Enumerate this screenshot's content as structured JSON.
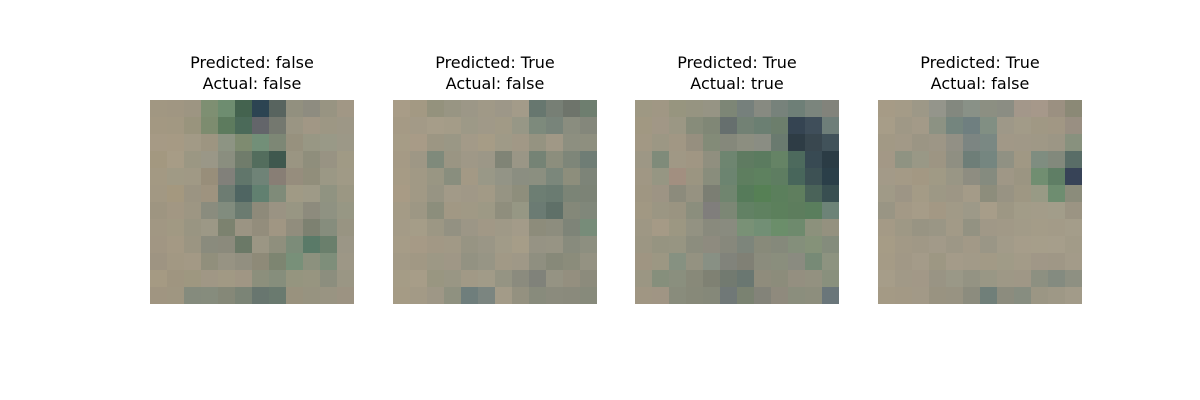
{
  "panels": [
    {
      "predicted": "Predicted: false",
      "actual": "Actual: false",
      "pixels": [
        [
          "#a19782",
          "#a09682",
          "#9d9582",
          "#7e8f72",
          "#6e8d70",
          "#44634f",
          "#2c4452",
          "#58645f",
          "#92907f",
          "#8e8c80",
          "#989482",
          "#a19785"
        ],
        [
          "#a39882",
          "#a29882",
          "#99947d",
          "#7d8c6f",
          "#5d7b5e",
          "#4b6a59",
          "#63656a",
          "#74786f",
          "#9a9583",
          "#a19785",
          "#9d9784",
          "#9d9786"
        ],
        [
          "#a69a85",
          "#a69a84",
          "#a29a86",
          "#9d9581",
          "#8d9483",
          "#7e8b70",
          "#728f78",
          "#7d8775",
          "#97917e",
          "#989784",
          "#999987",
          "#9c9887"
        ],
        [
          "#a39880",
          "#a79c86",
          "#9b9783",
          "#9a9787",
          "#8a8e7f",
          "#707c6b",
          "#536d5d",
          "#3f584e",
          "#9a9582",
          "#8f8e7c",
          "#989383",
          "#a09a85"
        ],
        [
          "#a39983",
          "#a09a85",
          "#a09985",
          "#988e7a",
          "#81807a",
          "#61766b",
          "#6f8377",
          "#887e75",
          "#968d7d",
          "#918e7b",
          "#9b9885",
          "#a09a86"
        ],
        [
          "#a29883",
          "#a4987f",
          "#9b9482",
          "#9e937f",
          "#6d7c72",
          "#4f6562",
          "#618070",
          "#7f8b79",
          "#a09a85",
          "#9e9a87",
          "#909381",
          "#9b9783"
        ],
        [
          "#9e9581",
          "#a29783",
          "#9d9683",
          "#8a8c7e",
          "#818c7e",
          "#6b7b70",
          "#8e8a7a",
          "#9a9383",
          "#989683",
          "#8d8b7d",
          "#8f9282",
          "#979784"
        ],
        [
          "#a19783",
          "#a19983",
          "#999582",
          "#9c9886",
          "#7c826f",
          "#9b9483",
          "#938d7c",
          "#a09683",
          "#918d7d",
          "#7d8171",
          "#868d7d",
          "#989482"
        ],
        [
          "#a19683",
          "#a49984",
          "#9b9582",
          "#8a8b7d",
          "#8b8a7c",
          "#6b7967",
          "#9b9684",
          "#8f8f7d",
          "#7c8c79",
          "#5a7a68",
          "#6a7f6c",
          "#9b9686"
        ],
        [
          "#9e9482",
          "#a29883",
          "#a39985",
          "#918f7c",
          "#979383",
          "#928f80",
          "#8e8a78",
          "#7d8571",
          "#789079",
          "#8c917e",
          "#7e8e7a",
          "#9d9786"
        ],
        [
          "#a59a83",
          "#9f9580",
          "#9e9780",
          "#a09785",
          "#a19984",
          "#a09684",
          "#8c8f7c",
          "#868e7c",
          "#95957f",
          "#979580",
          "#8c8e7e",
          "#9a9684"
        ],
        [
          "#a09581",
          "#9f9681",
          "#858b7d",
          "#868c7d",
          "#858878",
          "#7b8476",
          "#68766f",
          "#6a7a6f",
          "#99927e",
          "#979380",
          "#999482",
          "#9c9382"
        ]
      ]
    },
    {
      "predicted": "Predicted: True",
      "actual": "Actual: false",
      "pixels": [
        [
          "#a89c87",
          "#a39983",
          "#94927d",
          "#989583",
          "#9c9787",
          "#a09987",
          "#9d9788",
          "#a39b89",
          "#67776f",
          "#777f75",
          "#6e746b",
          "#6e7e6f"
        ],
        [
          "#a59a85",
          "#a39a87",
          "#a69d89",
          "#a49c88",
          "#9d9987",
          "#a09988",
          "#a19a86",
          "#979786",
          "#7d8a7c",
          "#78847a",
          "#8a8d7f",
          "#84877b"
        ],
        [
          "#a69c86",
          "#a89b87",
          "#9c9683",
          "#9a9785",
          "#a39a88",
          "#a69c86",
          "#9f9a87",
          "#a19886",
          "#959381",
          "#a09886",
          "#8d8f80",
          "#8e8f7f"
        ],
        [
          "#a59a85",
          "#9e9785",
          "#7f8a7b",
          "#9a9583",
          "#9f9887",
          "#9c9787",
          "#808476",
          "#9a9686",
          "#758375",
          "#8c8e7d",
          "#7e8679",
          "#6f7d75"
        ],
        [
          "#a69b85",
          "#a19985",
          "#999683",
          "#898e7e",
          "#a39985",
          "#999887",
          "#939486",
          "#8b8e81",
          "#8b8f80",
          "#7b877b",
          "#8d8e7c",
          "#7d8478"
        ],
        [
          "#a89b85",
          "#a19985",
          "#979483",
          "#a29a88",
          "#a09887",
          "#a29a86",
          "#969483",
          "#8e8e7c",
          "#6d7e73",
          "#6a7b71",
          "#7b8476",
          "#7c8376"
        ],
        [
          "#a49b86",
          "#9d9784",
          "#8c8e7c",
          "#a19884",
          "#a09985",
          "#9d9985",
          "#8f8e7d",
          "#969784",
          "#6b7b73",
          "#5f7068",
          "#848879",
          "#80877a"
        ],
        [
          "#a49b87",
          "#a59d88",
          "#9c9784",
          "#939182",
          "#9c9686",
          "#a19886",
          "#9f9987",
          "#a39b89",
          "#8d8c7b",
          "#8d8d7e",
          "#7e8478",
          "#778c79"
        ],
        [
          "#a69c87",
          "#a69a86",
          "#a29885",
          "#a19986",
          "#979483",
          "#9a9686",
          "#a19b88",
          "#a69d88",
          "#969384",
          "#979484",
          "#888b7d",
          "#8d8f80"
        ],
        [
          "#a39a86",
          "#a19884",
          "#9d9885",
          "#9f9786",
          "#939282",
          "#979585",
          "#a19986",
          "#9f9887",
          "#8f8f80",
          "#878979",
          "#8b8c7b",
          "#949282"
        ],
        [
          "#a59c86",
          "#a79d88",
          "#999681",
          "#999684",
          "#a19986",
          "#a19b88",
          "#959483",
          "#8b8b7e",
          "#80827a",
          "#959383",
          "#948f7f",
          "#8c8b7c"
        ],
        [
          "#a59b85",
          "#a39a86",
          "#9e9786",
          "#8f9180",
          "#6f7e7c",
          "#7b8580",
          "#a39b88",
          "#949180",
          "#888b7c",
          "#8b8b7d",
          "#8a8a7c",
          "#878a7b"
        ]
      ]
    },
    {
      "predicted": "Predicted: True",
      "actual": "Actual: true",
      "pixels": [
        [
          "#9e9883",
          "#a09784",
          "#97957f",
          "#969481",
          "#969484",
          "#7d8676",
          "#76807c",
          "#878a81",
          "#77827b",
          "#6e7f77",
          "#7b857d",
          "#82837b"
        ],
        [
          "#a19882",
          "#a19786",
          "#9b9784",
          "#878c7a",
          "#808776",
          "#666f6e",
          "#728174",
          "#6b7f72",
          "#6c7e6c",
          "#354452",
          "#3f4e5a",
          "#6e7e79"
        ],
        [
          "#a29884",
          "#9c9784",
          "#a19784",
          "#968f7f",
          "#838b78",
          "#85887b",
          "#8c8e80",
          "#8a8d83",
          "#6a7a6f",
          "#2e3c45",
          "#39474f",
          "#41525a"
        ],
        [
          "#9d9785",
          "#7f8b7a",
          "#a09885",
          "#a09683",
          "#908f7f",
          "#6e8570",
          "#5f7b61",
          "#5b7b5f",
          "#658365",
          "#4d6a5d",
          "#384a53",
          "#2b3c45"
        ],
        [
          "#a09784",
          "#969683",
          "#a28f80",
          "#9b9581",
          "#898d7c",
          "#6c8470",
          "#5e7e5f",
          "#5e815f",
          "#5e7d61",
          "#48665b",
          "#3d5154",
          "#2b3f49"
        ],
        [
          "#9f9682",
          "#9d9484",
          "#8c8b7c",
          "#969281",
          "#7b7e73",
          "#70856f",
          "#567b5a",
          "#568055",
          "#5b7f5c",
          "#5f7e5e",
          "#4a6359",
          "#394f51"
        ],
        [
          "#a19883",
          "#9b9683",
          "#9a9481",
          "#8b8e7d",
          "#807e7c",
          "#7c8775",
          "#628164",
          "#5f8160",
          "#5c805c",
          "#5d7d5d",
          "#5a7e5d",
          "#6d8377"
        ],
        [
          "#9e9784",
          "#a59a86",
          "#9c9782",
          "#939282",
          "#898a7d",
          "#898b7f",
          "#799176",
          "#728f75",
          "#6b8e6a",
          "#6e8a6d",
          "#8c917c",
          "#94917f"
        ],
        [
          "#9c9683",
          "#969481",
          "#979582",
          "#8c8d7e",
          "#8e8b7f",
          "#87887c",
          "#7d857b",
          "#888a7a",
          "#85897b",
          "#848f7b",
          "#859279",
          "#848c7c"
        ],
        [
          "#9f9582",
          "#9c9783",
          "#869181",
          "#949281",
          "#889084",
          "#81837b",
          "#808075",
          "#8b8c7d",
          "#8a8e7d",
          "#8a8b80",
          "#778a76",
          "#8d9380"
        ],
        [
          "#9b9683",
          "#868f7c",
          "#8a8f7e",
          "#888979",
          "#7f8173",
          "#727a70",
          "#6a7771",
          "#8f8c7c",
          "#8c8c7b",
          "#948f80",
          "#939180",
          "#89907d"
        ],
        [
          "#a09683",
          "#a09584",
          "#898c7c",
          "#878979",
          "#858879",
          "#707877",
          "#7a8271",
          "#838379",
          "#8f8a7d",
          "#8b8e7d",
          "#8d8e7d",
          "#6a767a"
        ]
      ]
    },
    {
      "predicted": "Predicted: True",
      "actual": "Actual: false",
      "pixels": [
        [
          "#a69b86",
          "#a49b87",
          "#9d9887",
          "#94958b",
          "#83887f",
          "#899187",
          "#8c8f82",
          "#8b8d83",
          "#a3978a",
          "#a6988a",
          "#9b9081",
          "#8b8976"
        ],
        [
          "#a79d88",
          "#9f9886",
          "#a39a88",
          "#8c9283",
          "#74857e",
          "#6f7f80",
          "#818f83",
          "#9e9888",
          "#a29b88",
          "#a09884",
          "#a19784",
          "#998f82"
        ],
        [
          "#a29985",
          "#a29987",
          "#9b9584",
          "#9d9686",
          "#929085",
          "#7c8582",
          "#7a8883",
          "#a19887",
          "#a09887",
          "#9f9886",
          "#9c9685",
          "#88917e"
        ],
        [
          "#a39886",
          "#8f9382",
          "#999886",
          "#9d9583",
          "#8f8f82",
          "#6e7e78",
          "#758680",
          "#909183",
          "#a09884",
          "#7f8d80",
          "#82897c",
          "#596d67"
        ],
        [
          "#a39a88",
          "#a49a86",
          "#a39883",
          "#a09a85",
          "#999685",
          "#8e8d81",
          "#858b7f",
          "#9f9786",
          "#9b9582",
          "#718e71",
          "#5f7e65",
          "#374357"
        ],
        [
          "#a09a87",
          "#9d9585",
          "#a49b86",
          "#9d9885",
          "#9d9685",
          "#a49b88",
          "#8d8d7c",
          "#989383",
          "#9e9783",
          "#989a85",
          "#6e8d70",
          "#8b8c7b"
        ],
        [
          "#999584",
          "#a39986",
          "#a69c88",
          "#a39884",
          "#a19a87",
          "#9d9988",
          "#a79d89",
          "#9d9784",
          "#a29c88",
          "#a39c89",
          "#a29d8a",
          "#9b9483"
        ],
        [
          "#a49a86",
          "#9e9885",
          "#989483",
          "#9a9685",
          "#a29a87",
          "#939282",
          "#a09887",
          "#a19987",
          "#a29b88",
          "#a49c88",
          "#a39b88",
          "#a49d8a"
        ],
        [
          "#a69c86",
          "#a29986",
          "#a09886",
          "#a29a89",
          "#9d9786",
          "#a29987",
          "#9a9686",
          "#a29b89",
          "#a69d8a",
          "#a69e8a",
          "#a69e8b",
          "#a29b88"
        ],
        [
          "#a59b86",
          "#a19886",
          "#a49b89",
          "#9d9783",
          "#a49b89",
          "#a29a88",
          "#a29a86",
          "#a09b87",
          "#a39b88",
          "#a09787",
          "#9f9786",
          "#a39b89"
        ],
        [
          "#a69d89",
          "#a19987",
          "#a29887",
          "#999484",
          "#9a9887",
          "#949383",
          "#999785",
          "#9e9886",
          "#9f9786",
          "#8d9081",
          "#848b80",
          "#8e9082"
        ],
        [
          "#a49a85",
          "#a39985",
          "#a29987",
          "#999381",
          "#989382",
          "#8c8c7e",
          "#707f79",
          "#8c8c7e",
          "#878d80",
          "#9b9684",
          "#9e9886",
          "#a29b89"
        ]
      ]
    }
  ]
}
